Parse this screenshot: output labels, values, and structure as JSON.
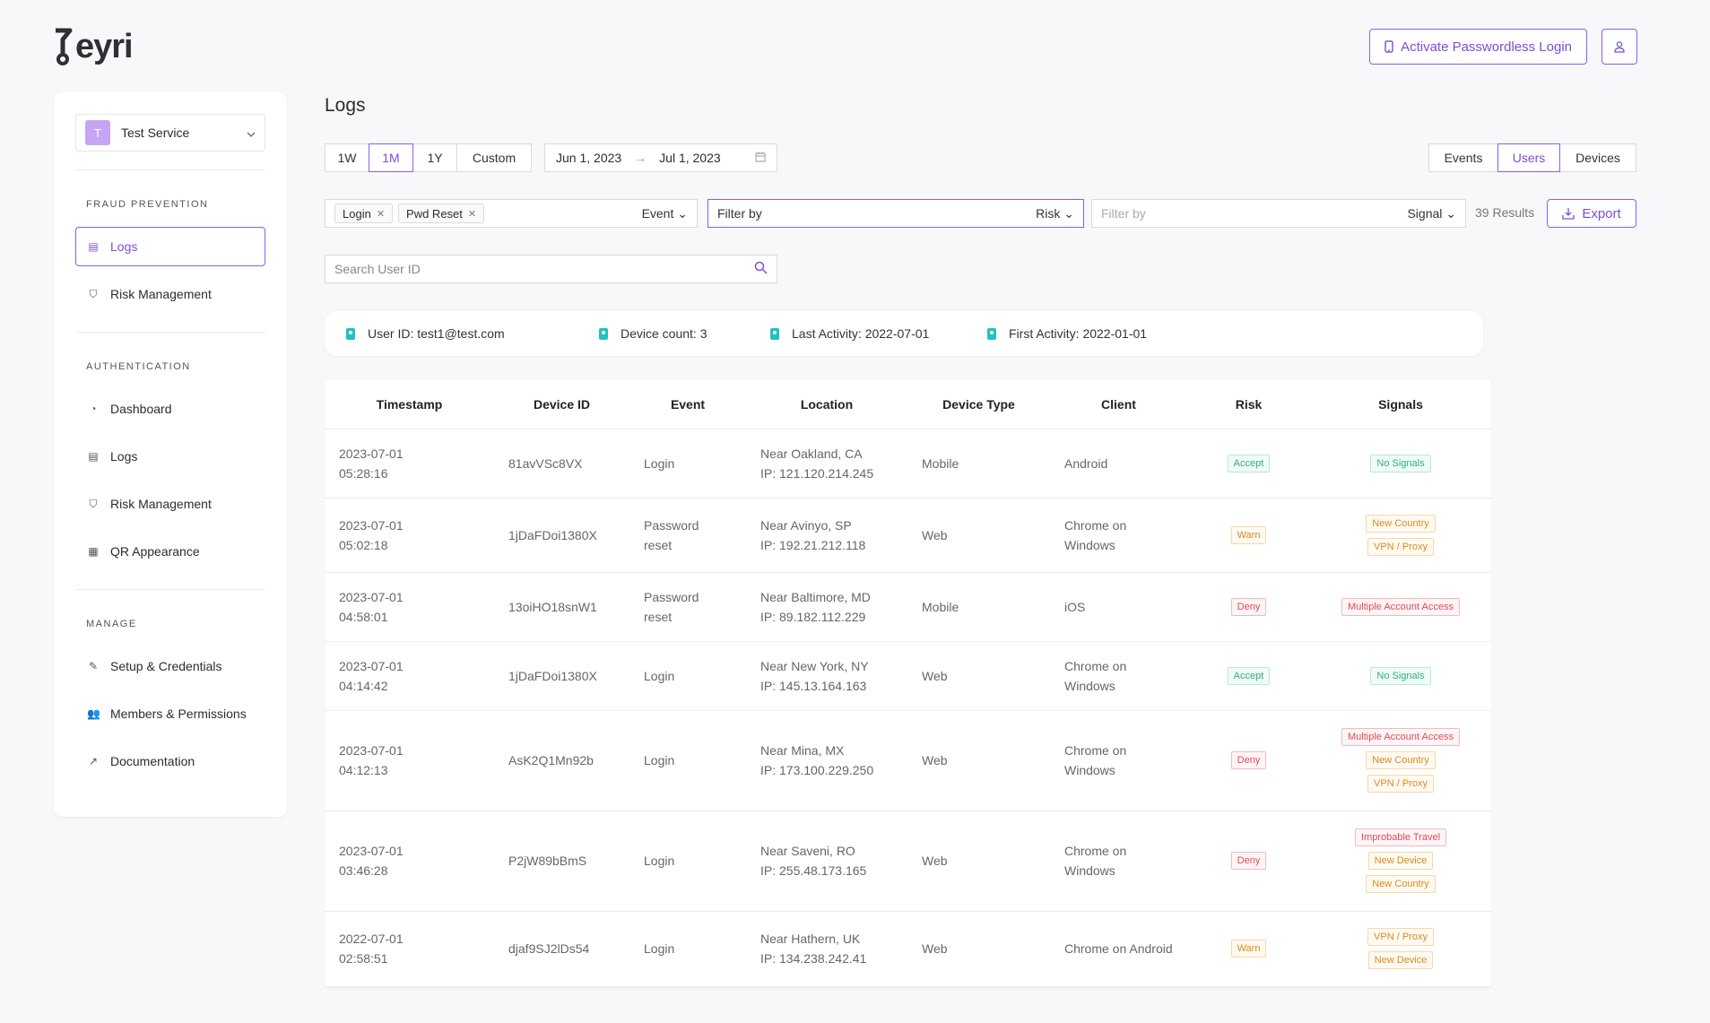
{
  "brand": {
    "logo_text": "eyri"
  },
  "header": {
    "activate_label": "Activate Passwordless Login",
    "activate_icon": "phone-icon",
    "user_icon": "user-icon"
  },
  "sidebar": {
    "service": {
      "avatar": "T",
      "name": "Test Service"
    },
    "sections": [
      {
        "title": "FRAUD PREVENTION",
        "items": [
          {
            "label": "Logs",
            "icon": "table-icon",
            "active": true
          },
          {
            "label": "Risk Management",
            "icon": "shield-icon",
            "active": false
          }
        ]
      },
      {
        "title": "AUTHENTICATION",
        "items": [
          {
            "label": "Dashboard",
            "icon": "gauge-icon",
            "active": false
          },
          {
            "label": "Logs",
            "icon": "table-icon",
            "active": false
          },
          {
            "label": "Risk Management",
            "icon": "shield-icon",
            "active": false
          },
          {
            "label": "QR Appearance",
            "icon": "grid-icon",
            "active": false
          }
        ]
      },
      {
        "title": "MANAGE",
        "items": [
          {
            "label": "Setup & Credentials",
            "icon": "wrench-icon",
            "active": false
          },
          {
            "label": "Members & Permissions",
            "icon": "users-icon",
            "active": false
          },
          {
            "label": "Documentation",
            "icon": "external-link-icon",
            "active": false
          }
        ]
      }
    ]
  },
  "main": {
    "title": "Logs",
    "ranges": [
      "1W",
      "1M",
      "1Y",
      "Custom"
    ],
    "selected_range": "1M",
    "date_start": "Jun 1, 2023",
    "date_end": "Jul 1, 2023",
    "views": [
      "Events",
      "Users",
      "Devices"
    ],
    "selected_view": "Users",
    "event_tags": [
      "Login",
      "Pwd Reset"
    ],
    "event_dropdown": "Event",
    "risk_filter_placeholder": "Filter by",
    "risk_dropdown": "Risk",
    "signal_filter_placeholder": "Filter by",
    "signal_dropdown": "Signal",
    "results": "39 Results",
    "export_label": "Export",
    "search_placeholder": "Search User ID",
    "user_info": [
      "User ID: test1@test.com",
      "Device count: 3",
      "Last Activity: 2022-07-01",
      "First Activity: 2022-01-01"
    ],
    "table": {
      "columns": [
        "Timestamp",
        "Device ID",
        "Event",
        "Location",
        "Device Type",
        "Client",
        "Risk",
        "Signals"
      ],
      "rows": [
        {
          "date": "2023-07-01",
          "time": "05:28:16",
          "device_id": "81avVSc8VX",
          "event": [
            "Login"
          ],
          "location": "Near Oakland, CA",
          "ip": "IP: 121.120.214.245",
          "device_type": "Mobile",
          "client": [
            "Android"
          ],
          "risk": "Accept",
          "signals": [
            "No Signals"
          ]
        },
        {
          "date": "2023-07-01",
          "time": "05:02:18",
          "device_id": "1jDaFDoi1380X",
          "event": [
            "Password",
            "reset"
          ],
          "location": "Near Avinyo, SP",
          "ip": "IP: 192.21.212.118",
          "device_type": "Web",
          "client": [
            "Chrome on",
            "Windows"
          ],
          "risk": "Warn",
          "signals": [
            "New Country",
            "VPN / Proxy"
          ]
        },
        {
          "date": "2023-07-01",
          "time": "04:58:01",
          "device_id": "13oiHO18snW1",
          "event": [
            "Password",
            "reset"
          ],
          "location": "Near Baltimore, MD",
          "ip": "IP: 89.182.112.229",
          "device_type": "Mobile",
          "client": [
            "iOS"
          ],
          "risk": "Deny",
          "signals": [
            "Multiple Account Access"
          ]
        },
        {
          "date": "2023-07-01",
          "time": "04:14:42",
          "device_id": "1jDaFDoi1380X",
          "event": [
            "Login"
          ],
          "location": "Near New York, NY",
          "ip": "IP: 145.13.164.163",
          "device_type": "Web",
          "client": [
            "Chrome on",
            "Windows"
          ],
          "risk": "Accept",
          "signals": [
            "No Signals"
          ]
        },
        {
          "date": "2023-07-01",
          "time": "04:12:13",
          "device_id": "AsK2Q1Mn92b",
          "event": [
            "Login"
          ],
          "location": "Near Mina, MX",
          "ip": "IP: 173.100.229.250",
          "device_type": "Web",
          "client": [
            "Chrome on",
            "Windows"
          ],
          "risk": "Deny",
          "signals": [
            "Multiple Account Access",
            "New Country",
            "VPN / Proxy"
          ]
        },
        {
          "date": "2023-07-01",
          "time": "03:46:28",
          "device_id": "P2jW89bBmS",
          "event": [
            "Login"
          ],
          "location": "Near Saveni, RO",
          "ip": "IP: 255.48.173.165",
          "device_type": "Web",
          "client": [
            "Chrome on",
            "Windows"
          ],
          "risk": "Deny",
          "signals": [
            "Improbable Travel",
            "New Device",
            "New Country"
          ]
        },
        {
          "date": "2022-07-01",
          "time": "02:58:51",
          "device_id": "djaf9SJ2lDs54",
          "event": [
            "Login"
          ],
          "location": "Near Hathern, UK",
          "ip": "IP: 134.238.242.41",
          "device_type": "Web",
          "client": [
            "Chrome on Android"
          ],
          "risk": "Warn",
          "signals": [
            "VPN / Proxy",
            "New Device"
          ]
        }
      ]
    }
  },
  "colors": {
    "accent": "#8b5cf6",
    "accept": "#2eaf7d",
    "warn": "#d98a1f",
    "deny": "#dd4b57",
    "info_icon": "#22c1c3"
  }
}
